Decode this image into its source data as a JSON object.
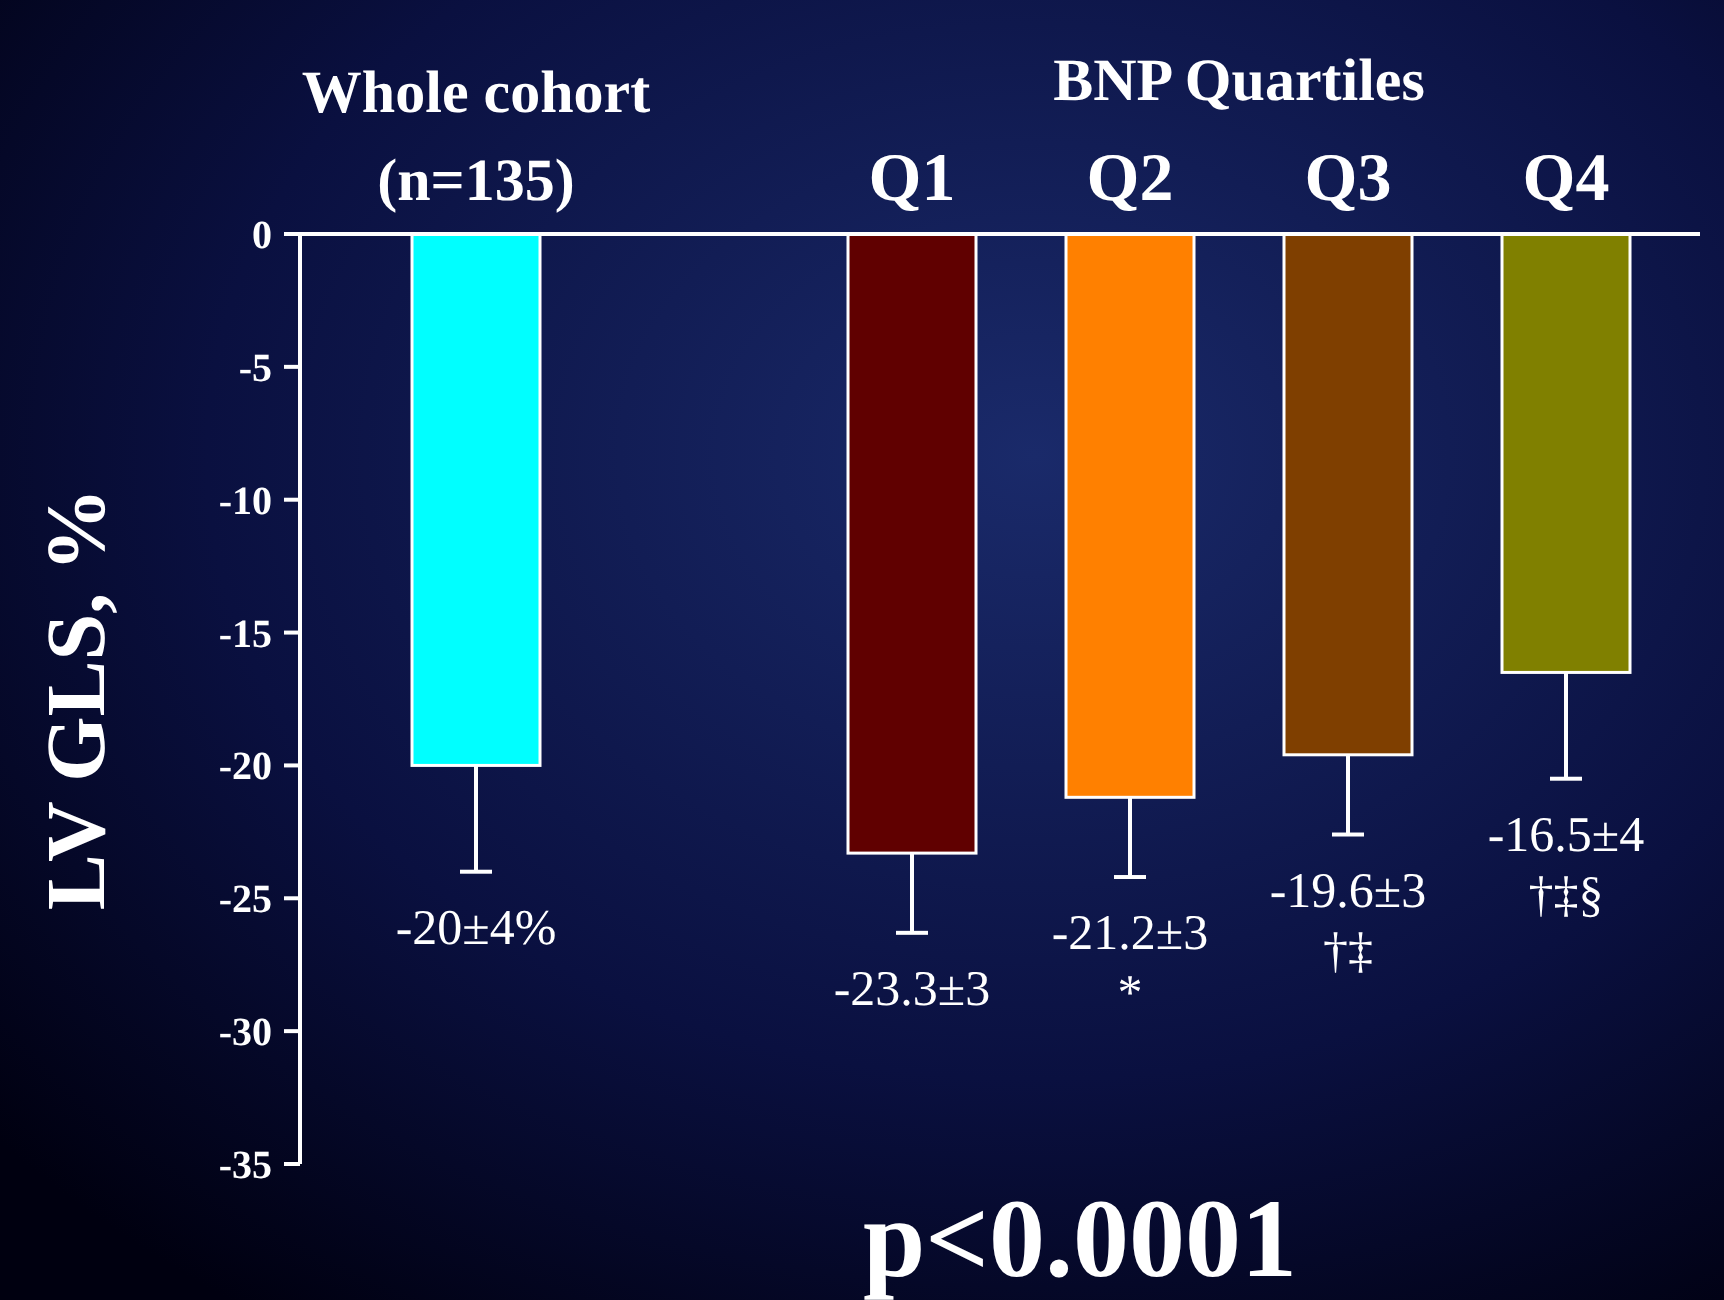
{
  "chart_data": {
    "type": "bar",
    "categories": [
      "Whole cohort (n=135)",
      "Q1",
      "Q2",
      "Q3",
      "Q4"
    ],
    "values": [
      -20,
      -23.3,
      -21.2,
      -19.6,
      -16.5
    ],
    "colors": [
      "#00ffff",
      "#600000",
      "#ff8000",
      "#7f3f00",
      "#808000"
    ],
    "errors": [
      [
        -24,
        -20
      ],
      [
        -26.3,
        -23.3
      ],
      [
        -24.2,
        -21.2
      ],
      [
        -22.6,
        -19.6
      ],
      [
        -20.5,
        -16.5
      ]
    ],
    "value_labels": [
      "-20±4%",
      "-23.3±3",
      "-21.2±3 *",
      "-19.6±3 †‡",
      "-16.5±4 †‡§"
    ],
    "ylabel": "LV GLS, %",
    "ylim": [
      -35,
      0
    ],
    "yticks": [
      0,
      -5,
      -10,
      -15,
      -20,
      -25,
      -30,
      -35
    ],
    "annotations": [
      "BNP Quartiles",
      "p<0.0001"
    ],
    "grid": false
  }
}
